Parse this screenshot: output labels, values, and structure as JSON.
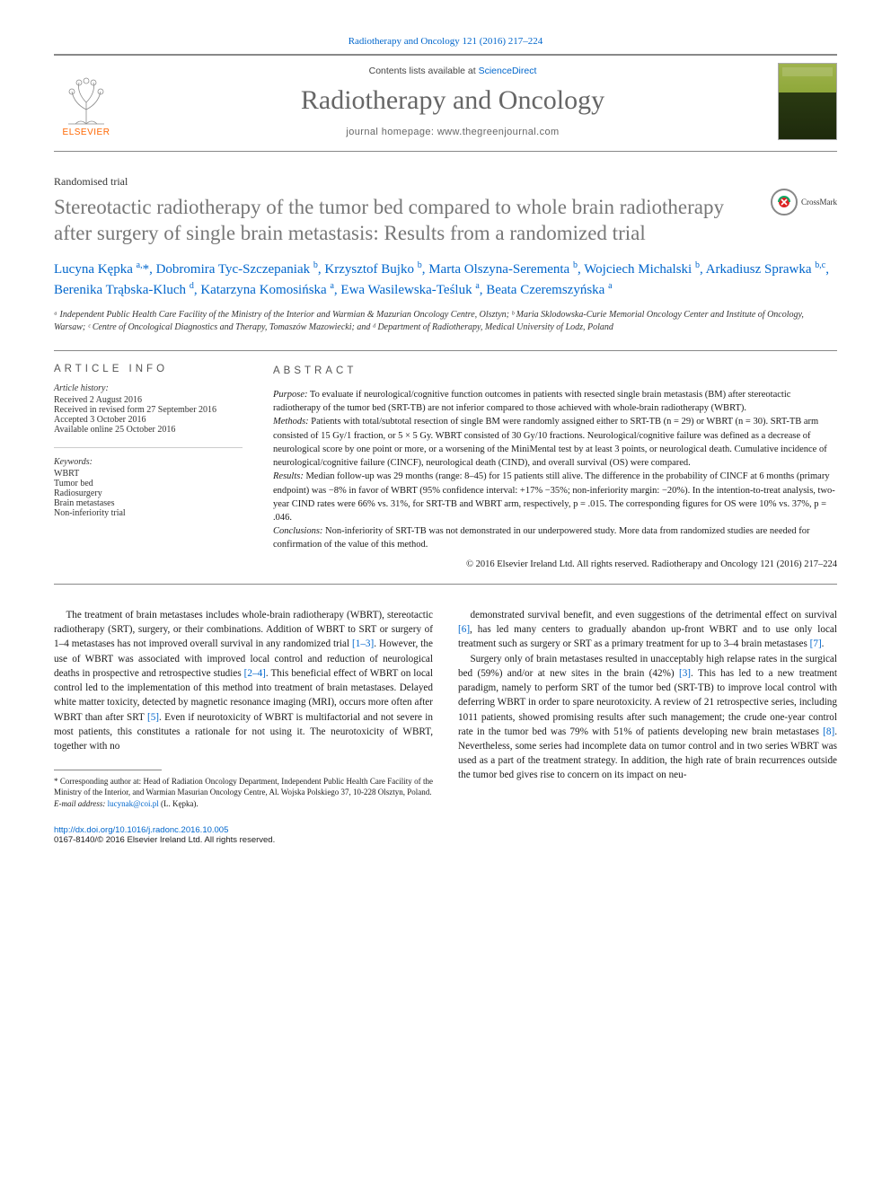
{
  "citation_line": "Radiotherapy and Oncology 121 (2016) 217–224",
  "masthead": {
    "contents_prefix": "Contents lists available at ",
    "contents_link": "ScienceDirect",
    "journal_name": "Radiotherapy and Oncology",
    "homepage_prefix": "journal homepage: ",
    "homepage_url": "www.thegreenjournal.com",
    "publisher_logo_text": "ELSEVIER"
  },
  "article_type": "Randomised trial",
  "crossmark_label": "CrossMark",
  "title": "Stereotactic radiotherapy of the tumor bed compared to whole brain radiotherapy after surgery of single brain metastasis: Results from a randomized trial",
  "authors_html": "Lucyna Kępka <sup>a,</sup>*, Dobromira Tyc-Szczepaniak <sup>b</sup>, Krzysztof Bujko <sup>b</sup>, Marta Olszyna-Serementa <sup>b</sup>, Wojciech Michalski <sup>b</sup>, Arkadiusz Sprawka <sup>b,c</sup>, Berenika Trąbska-Kluch <sup>d</sup>, Katarzyna Komosińska <sup>a</sup>, Ewa Wasilewska-Teśluk <sup>a</sup>, Beata Czeremszyńska <sup>a</sup>",
  "affiliations": "ᵃ Independent Public Health Care Facility of the Ministry of the Interior and Warmian & Mazurian Oncology Centre, Olsztyn; ᵇ Maria Sklodowska-Curie Memorial Oncology Center and Institute of Oncology, Warsaw; ᶜ Centre of Oncological Diagnostics and Therapy, Tomaszów Mazowiecki; and ᵈ Department of Radiotherapy, Medical University of Lodz, Poland",
  "article_info": {
    "heading": "ARTICLE INFO",
    "history_label": "Article history:",
    "received": "Received 2 August 2016",
    "revised": "Received in revised form 27 September 2016",
    "accepted": "Accepted 3 October 2016",
    "online": "Available online 25 October 2016",
    "keywords_label": "Keywords:",
    "keywords": [
      "WBRT",
      "Tumor bed",
      "Radiosurgery",
      "Brain metastases",
      "Non-inferiority trial"
    ]
  },
  "abstract": {
    "heading": "ABSTRACT",
    "purpose_label": "Purpose:",
    "purpose": " To evaluate if neurological/cognitive function outcomes in patients with resected single brain metastasis (BM) after stereotactic radiotherapy of the tumor bed (SRT-TB) are not inferior compared to those achieved with whole-brain radiotherapy (WBRT).",
    "methods_label": "Methods:",
    "methods": " Patients with total/subtotal resection of single BM were randomly assigned either to SRT-TB (n = 29) or WBRT (n = 30). SRT-TB arm consisted of 15 Gy/1 fraction, or 5 × 5 Gy. WBRT consisted of 30 Gy/10 fractions. Neurological/cognitive failure was defined as a decrease of neurological score by one point or more, or a worsening of the MiniMental test by at least 3 points, or neurological death. Cumulative incidence of neurological/cognitive failure (CINCF), neurological death (CIND), and overall survival (OS) were compared.",
    "results_label": "Results:",
    "results": " Median follow-up was 29 months (range: 8–45) for 15 patients still alive. The difference in the probability of CINCF at 6 months (primary endpoint) was −8% in favor of WBRT (95% confidence interval: +17% −35%; non-inferiority margin: −20%). In the intention-to-treat analysis, two-year CIND rates were 66% vs. 31%, for SRT-TB and WBRT arm, respectively, p = .015. The corresponding figures for OS were 10% vs. 37%, p = .046.",
    "conclusions_label": "Conclusions:",
    "conclusions": " Non-inferiority of SRT-TB was not demonstrated in our underpowered study. More data from randomized studies are needed for confirmation of the value of this method.",
    "copyright": "© 2016 Elsevier Ireland Ltd. All rights reserved. Radiotherapy and Oncology 121 (2016) 217–224"
  },
  "body": {
    "p1": "The treatment of brain metastases includes whole-brain radiotherapy (WBRT), stereotactic radiotherapy (SRT), surgery, or their combinations. Addition of WBRT to SRT or surgery of 1–4 metastases has not improved overall survival in any randomized trial ",
    "p1_ref": "[1–3]",
    "p1b": ". However, the use of WBRT was associated with improved local control and reduction of neurological deaths in prospective and retrospective studies ",
    "p1_ref2": "[2–4]",
    "p1c": ". This beneficial effect of WBRT on local control led to the implementation of this method into treatment of brain metastases. Delayed white matter toxicity, detected by magnetic resonance imaging (MRI), occurs more often after WBRT than after SRT ",
    "p1_ref3": "[5]",
    "p1d": ". Even if neurotoxicity of WBRT is multifactorial and not severe in most patients, this constitutes a rationale for not using it. The neurotoxicity of WBRT, together with no",
    "p2a": "demonstrated survival benefit, and even suggestions of the detrimental effect on survival ",
    "p2_ref": "[6]",
    "p2b": ", has led many centers to gradually abandon up-front WBRT and to use only local treatment such as surgery or SRT as a primary treatment for up to 3–4 brain metastases ",
    "p2_ref2": "[7]",
    "p2c": ".",
    "p3a": "Surgery only of brain metastases resulted in unacceptably high relapse rates in the surgical bed (59%) and/or at new sites in the brain (42%) ",
    "p3_ref": "[3]",
    "p3b": ". This has led to a new treatment paradigm, namely to perform SRT of the tumor bed (SRT-TB) to improve local control with deferring WBRT in order to spare neurotoxicity. A review of 21 retrospective series, including 1011 patients, showed promising results after such management; the crude one-year control rate in the tumor bed was 79% with 51% of patients developing new brain metastases ",
    "p3_ref2": "[8]",
    "p3c": ". Nevertheless, some series had incomplete data on tumor control and in two series WBRT was used as a part of the treatment strategy. In addition, the high rate of brain recurrences outside the tumor bed gives rise to concern on its impact on neu-"
  },
  "footnote": {
    "corr_label": "* Corresponding author at:",
    "corr_text": " Head of Radiation Oncology Department, Independent Public Health Care Facility of the Ministry of the Interior, and Warmian Masurian Oncology Centre, Al. Wojska Polskiego 37, 10-228 Olsztyn, Poland.",
    "email_label": "E-mail address:",
    "email": " lucynak@coi.pl",
    "email_who": " (L. Kępka)."
  },
  "doi": {
    "url": "http://dx.doi.org/10.1016/j.radonc.2016.10.005",
    "issn_line": "0167-8140/© 2016 Elsevier Ireland Ltd. All rights reserved."
  }
}
